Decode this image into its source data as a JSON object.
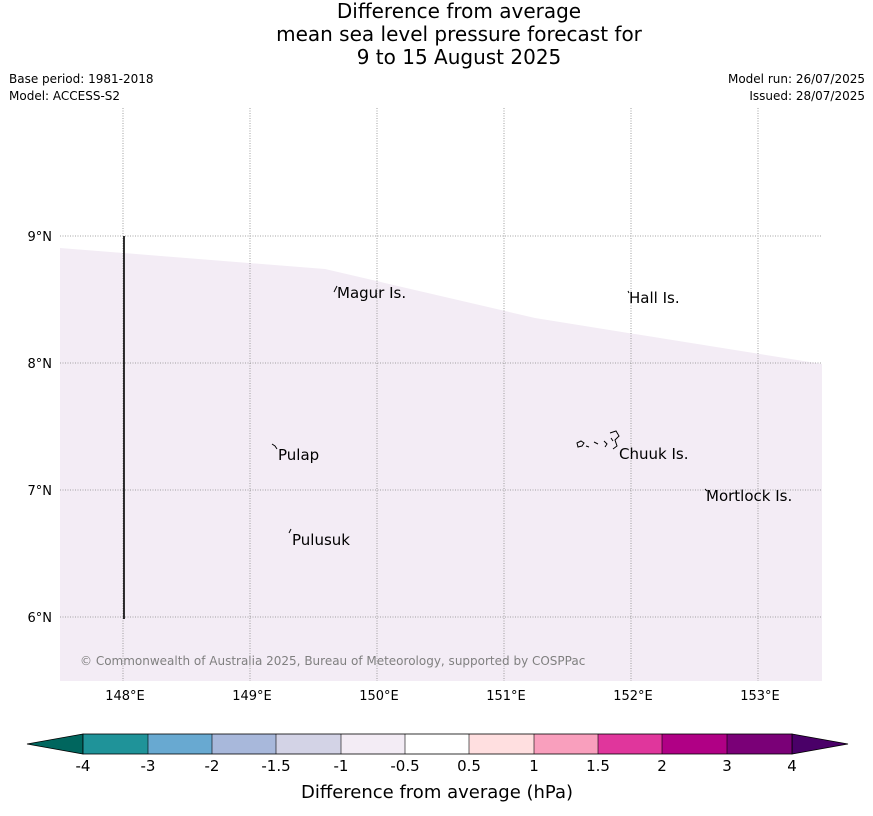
{
  "title": {
    "line1": "Difference from average",
    "line2": "mean sea level pressure forecast for",
    "line3": "9 to 15 August 2025"
  },
  "meta": {
    "base_period": "Base period: 1981-2018",
    "model": "Model: ACCESS-S2",
    "model_run": "Model run: 26/07/2025",
    "issued": "Issued: 28/07/2025"
  },
  "map": {
    "lat_labels": [
      "9°N",
      "8°N",
      "7°N",
      "6°N"
    ],
    "lon_labels": [
      "148°E",
      "149°E",
      "150°E",
      "151°E",
      "152°E",
      "153°E"
    ],
    "places": [
      {
        "name": "Magur Is."
      },
      {
        "name": "Hall Is."
      },
      {
        "name": "Pulap"
      },
      {
        "name": "Chuuk Is."
      },
      {
        "name": "Mortlock Is."
      },
      {
        "name": "Pulusuk"
      }
    ],
    "copyright": "© Commonwealth of Australia 2025, Bureau of Meteorology, supported by COSPPac",
    "field_color": "#f3ecf5"
  },
  "colorbar": {
    "label": "Difference from average (hPa)",
    "ticks": [
      "-4",
      "-3",
      "-2",
      "-1.5",
      "-1",
      "-0.5",
      "0.5",
      "1",
      "1.5",
      "2",
      "3",
      "4"
    ],
    "under_color": "#00665e",
    "over_color": "#4a0068",
    "colors": [
      "#1f9399",
      "#68a9d1",
      "#a8b8db",
      "#d3d3e6",
      "#f3ecf5",
      "#ffffff",
      "#ffdfe0",
      "#f99fbd",
      "#e0369c",
      "#b00085",
      "#7a0077"
    ]
  }
}
